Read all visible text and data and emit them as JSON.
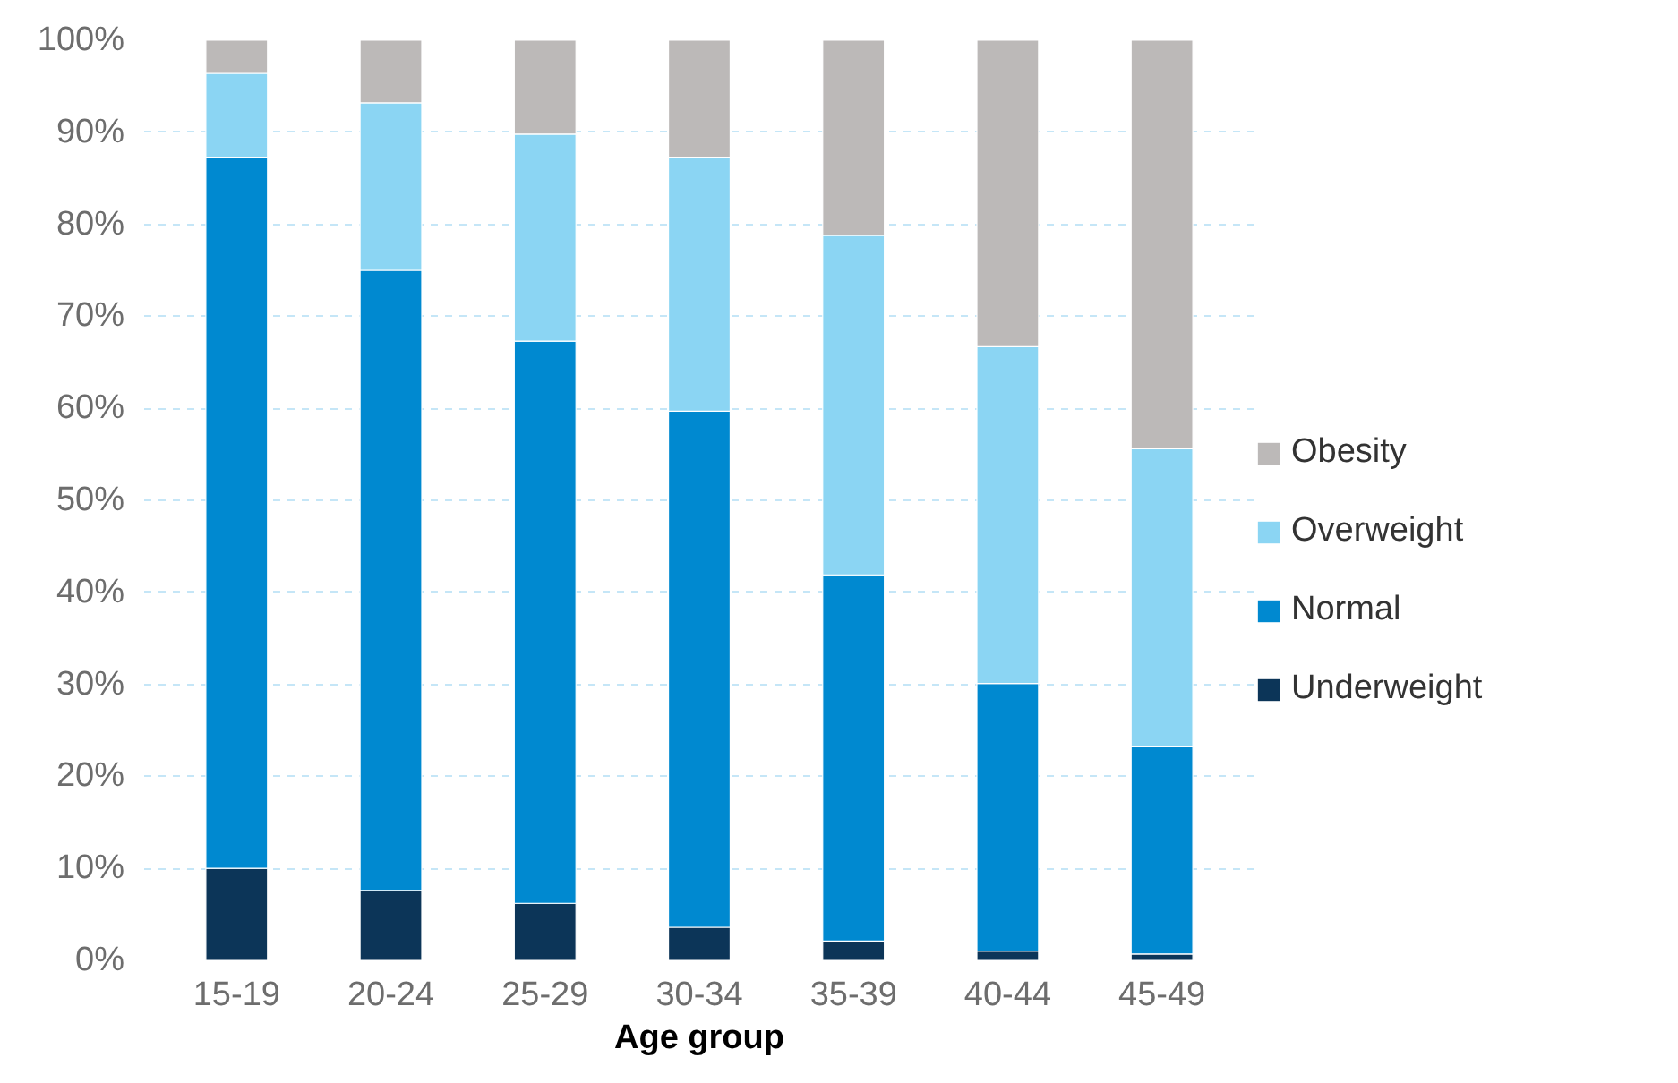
{
  "chart_data": {
    "type": "bar",
    "stacked": true,
    "xlabel": "Age group",
    "categories": [
      "15-19",
      "20-24",
      "25-29",
      "30-34",
      "35-39",
      "40-44",
      "45-49"
    ],
    "series": [
      {
        "name": "Underweight",
        "color": "#0c3558",
        "values": [
          10,
          7.6,
          6.2,
          3.6,
          2.1,
          1.0,
          0.7
        ]
      },
      {
        "name": "Normal",
        "color": "#0089d0",
        "values": [
          77.3,
          67.4,
          61.1,
          56.1,
          39.8,
          29.1,
          22.5
        ]
      },
      {
        "name": "Overweight",
        "color": "#8bd5f3",
        "values": [
          9.1,
          18.2,
          22.5,
          27.6,
          36.9,
          36.6,
          32.4
        ]
      },
      {
        "name": "Obesity",
        "color": "#bcb9b8",
        "values": [
          3.6,
          6.8,
          10.2,
          12.7,
          21.2,
          33.3,
          44.4
        ]
      }
    ],
    "ylim": [
      0,
      100
    ],
    "yticks": [
      {
        "value": 0,
        "label": "0%"
      },
      {
        "value": 10,
        "label": "10%"
      },
      {
        "value": 20,
        "label": "20%"
      },
      {
        "value": 30,
        "label": "30%"
      },
      {
        "value": 40,
        "label": "40%"
      },
      {
        "value": 50,
        "label": "50%"
      },
      {
        "value": 60,
        "label": "60%"
      },
      {
        "value": 70,
        "label": "70%"
      },
      {
        "value": 80,
        "label": "80%"
      },
      {
        "value": 90,
        "label": "90%"
      },
      {
        "value": 100,
        "label": "100%"
      }
    ],
    "grid": "y",
    "legend": "right"
  }
}
